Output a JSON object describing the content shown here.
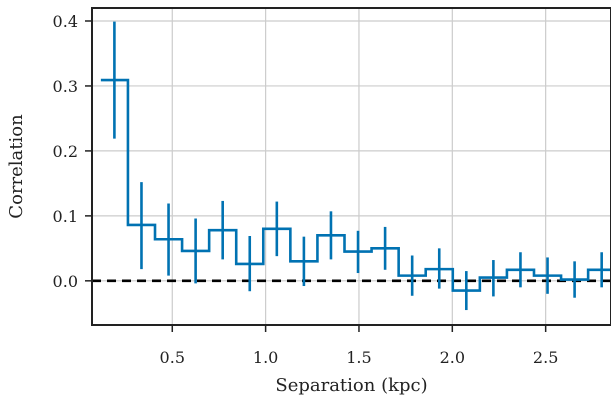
{
  "chart_data": {
    "type": "line",
    "title": "",
    "xlabel": "Separation (kpc)",
    "ylabel": "Correlation",
    "xlim": [
      0.07,
      2.85
    ],
    "ylim": [
      -0.068,
      0.42
    ],
    "grid": true,
    "legend": "none",
    "xticks": [
      0.5,
      1.0,
      1.5,
      2.0,
      2.5
    ],
    "xtick_labels": [
      "0.5",
      "1.0",
      "1.5",
      "2.0",
      "2.5"
    ],
    "yticks": [
      0.0,
      0.1,
      0.2,
      0.3,
      0.4
    ],
    "ytick_labels": [
      "0.0",
      "0.1",
      "0.2",
      "0.3",
      "0.4"
    ],
    "reference_line": {
      "y": 0.0,
      "style": "dashed",
      "color": "#000000"
    },
    "colors": {
      "series": "#0072b2",
      "grid": "#cccccc",
      "axes": "#222222"
    },
    "series": [
      {
        "step": "mid",
        "bin_width": 0.145,
        "x": [
          0.19,
          0.335,
          0.48,
          0.625,
          0.77,
          0.915,
          1.06,
          1.205,
          1.35,
          1.495,
          1.64,
          1.785,
          1.93,
          2.075,
          2.22,
          2.365,
          2.51,
          2.655,
          2.8
        ],
        "y": [
          0.309,
          0.086,
          0.064,
          0.046,
          0.078,
          0.026,
          0.08,
          0.03,
          0.07,
          0.045,
          0.05,
          0.008,
          0.018,
          -0.015,
          0.005,
          0.017,
          0.008,
          0.002,
          0.017
        ],
        "y_low": [
          0.219,
          0.018,
          0.008,
          -0.004,
          0.033,
          -0.016,
          0.038,
          -0.008,
          0.033,
          0.012,
          0.017,
          -0.023,
          -0.012,
          -0.045,
          -0.024,
          -0.01,
          -0.02,
          -0.026,
          -0.01
        ],
        "y_high": [
          0.399,
          0.152,
          0.119,
          0.096,
          0.123,
          0.069,
          0.122,
          0.068,
          0.107,
          0.077,
          0.083,
          0.039,
          0.05,
          0.015,
          0.032,
          0.044,
          0.036,
          0.03,
          0.044
        ]
      }
    ]
  }
}
